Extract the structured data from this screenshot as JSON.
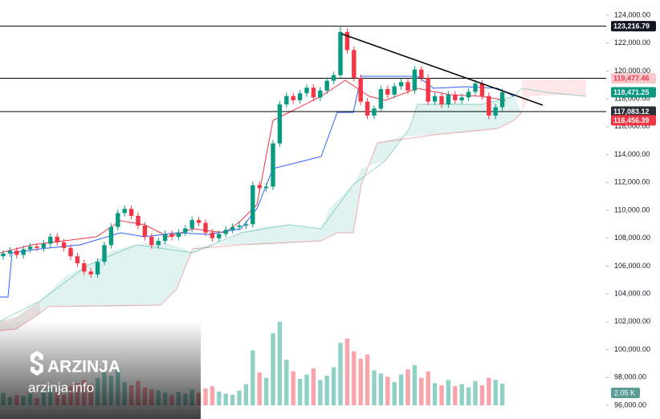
{
  "chart_data": {
    "type": "candlestick",
    "open": [
      106700,
      106900,
      107100,
      106800,
      107200,
      107400,
      107300,
      107600,
      108100,
      107700,
      107300,
      106700,
      106200,
      105600,
      105400,
      106300,
      107500,
      108800,
      109800,
      110100,
      109600,
      108900,
      108100,
      107500,
      107800,
      108300,
      108100,
      108400,
      108700,
      109300,
      109100,
      108400,
      108000,
      108300,
      108600,
      108800,
      108900,
      109000,
      111800,
      111600,
      111700,
      114800,
      117600,
      118200,
      117900,
      118400,
      118800,
      118100,
      118600,
      119300,
      119700,
      122800,
      121500,
      119500,
      117800,
      116800,
      117300,
      118700,
      118300,
      118900,
      119200,
      118600,
      120100,
      119500,
      117800,
      118200,
      117600,
      118300,
      117900,
      118100,
      118500,
      119100,
      118200,
      116800,
      117400
    ],
    "high": [
      107150,
      107350,
      107350,
      107450,
      107650,
      107650,
      107850,
      108350,
      108350,
      107950,
      107550,
      106950,
      106450,
      105850,
      106550,
      107750,
      109050,
      110050,
      110350,
      110350,
      109850,
      109150,
      108350,
      108050,
      108550,
      108550,
      108650,
      108950,
      109550,
      109550,
      109350,
      108650,
      108550,
      108850,
      109050,
      109150,
      109250,
      112050,
      112050,
      111950,
      115050,
      117850,
      118450,
      118450,
      118650,
      119050,
      119050,
      118850,
      119550,
      119950,
      123216.79,
      123050,
      121750,
      119750,
      118050,
      117550,
      118950,
      118950,
      119150,
      119450,
      119450,
      120350,
      120350,
      119750,
      118450,
      118450,
      118550,
      118550,
      118350,
      118750,
      119350,
      119350,
      118450,
      117650,
      118721.25
    ],
    "low": [
      106450,
      106650,
      106550,
      106550,
      106950,
      107050,
      107050,
      107350,
      107450,
      107050,
      106450,
      105950,
      105350,
      105150,
      105150,
      106050,
      107250,
      108550,
      109550,
      109350,
      108650,
      107850,
      107250,
      107250,
      107550,
      107850,
      107850,
      108150,
      108450,
      108850,
      108150,
      107750,
      107750,
      108050,
      108350,
      108550,
      108650,
      108750,
      111350,
      111350,
      111450,
      114550,
      117350,
      117650,
      117650,
      118150,
      117850,
      117850,
      118350,
      119050,
      119450,
      121250,
      119250,
      117550,
      116550,
      116550,
      117050,
      118050,
      118050,
      118650,
      118350,
      118350,
      119250,
      117550,
      117550,
      117350,
      117350,
      117650,
      117650,
      117850,
      118250,
      117950,
      116550,
      116550,
      117150
    ],
    "close": [
      106900,
      107100,
      106800,
      107200,
      107400,
      107300,
      107600,
      108100,
      107700,
      107300,
      106700,
      106200,
      105600,
      105400,
      106300,
      107500,
      108800,
      109800,
      110100,
      109600,
      108900,
      108100,
      107500,
      107800,
      108300,
      108100,
      108400,
      108700,
      109300,
      109100,
      108400,
      108000,
      108300,
      108600,
      108800,
      108900,
      109000,
      111800,
      111600,
      111700,
      114800,
      117600,
      118200,
      117900,
      118400,
      118800,
      118100,
      118600,
      119300,
      119700,
      122800,
      121500,
      119500,
      117800,
      116800,
      117300,
      118700,
      118300,
      118900,
      119200,
      118600,
      120100,
      119500,
      117800,
      118200,
      117600,
      118300,
      117900,
      118100,
      118500,
      119100,
      118200,
      116800,
      117400,
      118471.25
    ],
    "volume": [
      1.2,
      0.8,
      1.0,
      0.9,
      1.1,
      0.7,
      1.3,
      1.6,
      1.2,
      1.0,
      1.8,
      2.1,
      2.4,
      2.0,
      2.6,
      3.1,
      2.8,
      3.4,
      2.2,
      1.9,
      2.3,
      1.7,
      1.5,
      1.4,
      1.2,
      1.0,
      1.3,
      1.1,
      1.5,
      1.2,
      1.6,
      1.8,
      1.3,
      1.1,
      1.0,
      1.4,
      2.0,
      5.2,
      3.1,
      2.6,
      6.8,
      7.9,
      4.3,
      3.2,
      2.5,
      2.9,
      3.5,
      2.4,
      2.8,
      3.6,
      5.9,
      6.3,
      5.1,
      4.4,
      4.8,
      3.3,
      3.0,
      2.7,
      2.2,
      2.9,
      3.4,
      3.8,
      2.6,
      3.2,
      2.1,
      1.9,
      2.4,
      1.8,
      2.0,
      1.7,
      2.3,
      1.9,
      2.6,
      2.4,
      2.05
    ],
    "volume_label": "2.05 K",
    "up_color": "#089981",
    "down_color": "#f23645",
    "ylim": [
      96000,
      124000
    ],
    "yticks": [
      {
        "value": 96000,
        "label": "96,000.00"
      },
      {
        "value": 98000,
        "label": "98,000.00"
      },
      {
        "value": 100000,
        "label": "100,000.00"
      },
      {
        "value": 102000,
        "label": "102,000.00"
      },
      {
        "value": 104000,
        "label": "104,000.00"
      },
      {
        "value": 106000,
        "label": "106,000.00"
      },
      {
        "value": 108000,
        "label": "108,000.00"
      },
      {
        "value": 110000,
        "label": "110,000.00"
      },
      {
        "value": 112000,
        "label": "112,000.00"
      },
      {
        "value": 114000,
        "label": "114,000.00"
      },
      {
        "value": 116000,
        "label": "116,000.00"
      },
      {
        "value": 118000,
        "label": "118,000.00"
      },
      {
        "value": 120000,
        "label": "120,000.00"
      },
      {
        "value": 122000,
        "label": "122,000.00"
      },
      {
        "value": 124000,
        "label": "124,000.00"
      }
    ],
    "horizontal_lines": [
      123216.79,
      119477.46,
      117083.12
    ],
    "price_labels": [
      {
        "value": 123216.79,
        "label": "123,216.79",
        "color": "#131722"
      },
      {
        "value": 119477.46,
        "label": "119,477.46",
        "color": "#f7c9cd"
      },
      {
        "value": 118471.25,
        "label": "118,471.25",
        "color": "#089981"
      },
      {
        "value": 117083.12,
        "label": "117,083.12",
        "color": "#2a2e39"
      },
      {
        "value": 116456.39,
        "label": "116,456.39",
        "color": "#f23645"
      }
    ],
    "watermark": {
      "brand": "ARZINJA",
      "site": "arzinja.info"
    }
  }
}
